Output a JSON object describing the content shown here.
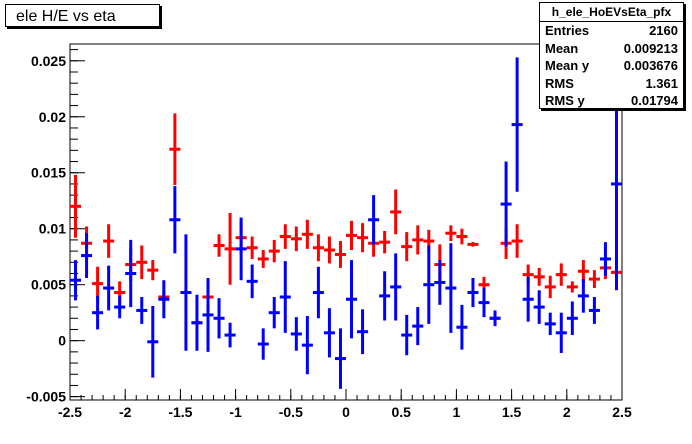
{
  "chart_data": {
    "type": "scatter",
    "title": "ele H/E vs eta",
    "xlabel": "",
    "ylabel": "",
    "xlim": [
      -2.5,
      2.5
    ],
    "ylim": [
      -0.0053,
      0.0265
    ],
    "x_ticks": [
      "-2.5",
      "-2",
      "-1.5",
      "-1",
      "-0.5",
      "0",
      "0.5",
      "1",
      "1.5",
      "2",
      "2.5"
    ],
    "y_ticks": [
      "-0.005",
      "0",
      "0.005",
      "0.01",
      "0.015",
      "0.02",
      "0.025"
    ],
    "grid": false,
    "bin_halfwidth": 0.05,
    "series": [
      {
        "color": "#ff0000",
        "points": [
          {
            "x": -2.45,
            "y": 0.012,
            "err": 0.0028
          },
          {
            "x": -2.35,
            "y": 0.0087,
            "err": 0.0015
          },
          {
            "x": -2.25,
            "y": 0.0051,
            "err": 0.0015
          },
          {
            "x": -2.15,
            "y": 0.0089,
            "err": 0.0015
          },
          {
            "x": -2.05,
            "y": 0.0043,
            "err": 0.001
          },
          {
            "x": -1.95,
            "y": 0.0068,
            "err": 0.0015
          },
          {
            "x": -1.85,
            "y": 0.007,
            "err": 0.0015
          },
          {
            "x": -1.75,
            "y": 0.0063,
            "err": 0.0009
          },
          {
            "x": -1.65,
            "y": 0.0039,
            "err": 0.0005
          },
          {
            "x": -1.55,
            "y": 0.0171,
            "err": 0.0032
          },
          {
            "x": -1.35,
            "y": 0.0016,
            "err": 0.0003
          },
          {
            "x": -1.25,
            "y": 0.0039,
            "err": 0.0008
          },
          {
            "x": -1.15,
            "y": 0.0085,
            "err": 0.001
          },
          {
            "x": -1.05,
            "y": 0.0082,
            "err": 0.0032
          },
          {
            "x": -0.95,
            "y": 0.0092,
            "err": 0.0015
          },
          {
            "x": -0.85,
            "y": 0.0083,
            "err": 0.001
          },
          {
            "x": -0.75,
            "y": 0.0073,
            "err": 0.0008
          },
          {
            "x": -0.65,
            "y": 0.008,
            "err": 0.001
          },
          {
            "x": -0.55,
            "y": 0.0093,
            "err": 0.0011
          },
          {
            "x": -0.45,
            "y": 0.0091,
            "err": 0.0011
          },
          {
            "x": -0.35,
            "y": 0.0095,
            "err": 0.0013
          },
          {
            "x": -0.25,
            "y": 0.0083,
            "err": 0.0012
          },
          {
            "x": -0.15,
            "y": 0.0081,
            "err": 0.0012
          },
          {
            "x": -0.05,
            "y": 0.0077,
            "err": 0.0012
          },
          {
            "x": 0.05,
            "y": 0.0094,
            "err": 0.0013
          },
          {
            "x": 0.15,
            "y": 0.0092,
            "err": 0.0013
          },
          {
            "x": 0.25,
            "y": 0.0087,
            "err": 0.0012
          },
          {
            "x": 0.35,
            "y": 0.0088,
            "err": 0.001
          },
          {
            "x": 0.45,
            "y": 0.0115,
            "err": 0.002
          },
          {
            "x": 0.55,
            "y": 0.0084,
            "err": 0.0013
          },
          {
            "x": 0.65,
            "y": 0.009,
            "err": 0.0013
          },
          {
            "x": 0.75,
            "y": 0.0089,
            "err": 0.001
          },
          {
            "x": 0.85,
            "y": 0.0068,
            "err": 0.0018
          },
          {
            "x": 0.95,
            "y": 0.0096,
            "err": 0.0007
          },
          {
            "x": 1.05,
            "y": 0.0093,
            "err": 0.0007
          },
          {
            "x": 1.15,
            "y": 0.0086,
            "err": 0.0002
          },
          {
            "x": 1.25,
            "y": 0.005,
            "err": 0.0007
          },
          {
            "x": 1.35,
            "y": 0.002,
            "err": 0.0005
          },
          {
            "x": 1.45,
            "y": 0.0087,
            "err": 0.0014
          },
          {
            "x": 1.55,
            "y": 0.0089,
            "err": 0.0015
          },
          {
            "x": 1.65,
            "y": 0.0059,
            "err": 0.0009
          },
          {
            "x": 1.75,
            "y": 0.0057,
            "err": 0.0008
          },
          {
            "x": 1.85,
            "y": 0.0048,
            "err": 0.001
          },
          {
            "x": 1.95,
            "y": 0.0059,
            "err": 0.001
          },
          {
            "x": 2.05,
            "y": 0.0048,
            "err": 0.0005
          },
          {
            "x": 2.15,
            "y": 0.0062,
            "err": 0.001
          },
          {
            "x": 2.25,
            "y": 0.0055,
            "err": 0.0008
          },
          {
            "x": 2.35,
            "y": 0.0065,
            "err": 0.001
          },
          {
            "x": 2.45,
            "y": 0.0061,
            "err": 0.0009
          }
        ]
      },
      {
        "color": "#0000ff",
        "points": [
          {
            "x": -2.45,
            "y": 0.0054,
            "err": 0.0018
          },
          {
            "x": -2.35,
            "y": 0.0076,
            "err": 0.002
          },
          {
            "x": -2.25,
            "y": 0.0025,
            "err": 0.0015
          },
          {
            "x": -2.15,
            "y": 0.0047,
            "err": 0.002
          },
          {
            "x": -2.05,
            "y": 0.003,
            "err": 0.001
          },
          {
            "x": -1.95,
            "y": 0.006,
            "err": 0.003
          },
          {
            "x": -1.85,
            "y": 0.0027,
            "err": 0.0012
          },
          {
            "x": -1.75,
            "y": -0.0001,
            "err": 0.0032
          },
          {
            "x": -1.65,
            "y": 0.0037,
            "err": 0.0017
          },
          {
            "x": -1.55,
            "y": 0.0108,
            "err": 0.003
          },
          {
            "x": -1.45,
            "y": 0.0043,
            "err": 0.0052
          },
          {
            "x": -1.35,
            "y": 0.0016,
            "err": 0.0025
          },
          {
            "x": -1.25,
            "y": 0.0023,
            "err": 0.0033
          },
          {
            "x": -1.15,
            "y": 0.002,
            "err": 0.0018
          },
          {
            "x": -1.05,
            "y": 0.0005,
            "err": 0.0011
          },
          {
            "x": -0.95,
            "y": 0.0082,
            "err": 0.0028
          },
          {
            "x": -0.85,
            "y": 0.0053,
            "err": 0.0015
          },
          {
            "x": -0.75,
            "y": -0.0003,
            "err": 0.0014
          },
          {
            "x": -0.65,
            "y": 0.0025,
            "err": 0.0014
          },
          {
            "x": -0.55,
            "y": 0.0039,
            "err": 0.0032
          },
          {
            "x": -0.45,
            "y": 0.0006,
            "err": 0.0015
          },
          {
            "x": -0.35,
            "y": -0.0004,
            "err": 0.0026
          },
          {
            "x": -0.25,
            "y": 0.0043,
            "err": 0.0023
          },
          {
            "x": -0.15,
            "y": 0.0007,
            "err": 0.0022
          },
          {
            "x": -0.05,
            "y": -0.0016,
            "err": 0.0027
          },
          {
            "x": 0.05,
            "y": 0.0037,
            "err": 0.0035
          },
          {
            "x": 0.15,
            "y": 0.0008,
            "err": 0.002
          },
          {
            "x": 0.25,
            "y": 0.0108,
            "err": 0.0022
          },
          {
            "x": 0.35,
            "y": 0.004,
            "err": 0.0022
          },
          {
            "x": 0.45,
            "y": 0.0048,
            "err": 0.003
          },
          {
            "x": 0.55,
            "y": 0.0005,
            "err": 0.0018
          },
          {
            "x": 0.65,
            "y": 0.0013,
            "err": 0.0017
          },
          {
            "x": 0.75,
            "y": 0.005,
            "err": 0.0035
          },
          {
            "x": 0.85,
            "y": 0.0052,
            "err": 0.002
          },
          {
            "x": 0.95,
            "y": 0.0047,
            "err": 0.004
          },
          {
            "x": 1.05,
            "y": 0.0012,
            "err": 0.002
          },
          {
            "x": 1.15,
            "y": 0.0043,
            "err": 0.0013
          },
          {
            "x": 1.25,
            "y": 0.0034,
            "err": 0.0013
          },
          {
            "x": 1.35,
            "y": 0.002,
            "err": 0.0007
          },
          {
            "x": 1.45,
            "y": 0.0122,
            "err": 0.0038
          },
          {
            "x": 1.55,
            "y": 0.0193,
            "err": 0.006
          },
          {
            "x": 1.65,
            "y": 0.0037,
            "err": 0.002
          },
          {
            "x": 1.75,
            "y": 0.003,
            "err": 0.0015
          },
          {
            "x": 1.85,
            "y": 0.0015,
            "err": 0.001
          },
          {
            "x": 1.95,
            "y": 0.0007,
            "err": 0.0018
          },
          {
            "x": 2.05,
            "y": 0.002,
            "err": 0.0015
          },
          {
            "x": 2.15,
            "y": 0.004,
            "err": 0.0015
          },
          {
            "x": 2.25,
            "y": 0.0027,
            "err": 0.0012
          },
          {
            "x": 2.35,
            "y": 0.0073,
            "err": 0.0015
          },
          {
            "x": 2.45,
            "y": 0.014,
            "err": 0.0095
          }
        ]
      }
    ]
  },
  "stats_box": {
    "name": "h_ele_HoEVsEta_pfx",
    "rows": [
      {
        "label": "Entries",
        "value": "2160"
      },
      {
        "label": "Mean",
        "value": "0.009213"
      },
      {
        "label": "Mean y",
        "value": "0.003676"
      },
      {
        "label": "RMS",
        "value": "1.361"
      },
      {
        "label": "RMS y",
        "value": "0.01794"
      }
    ]
  }
}
